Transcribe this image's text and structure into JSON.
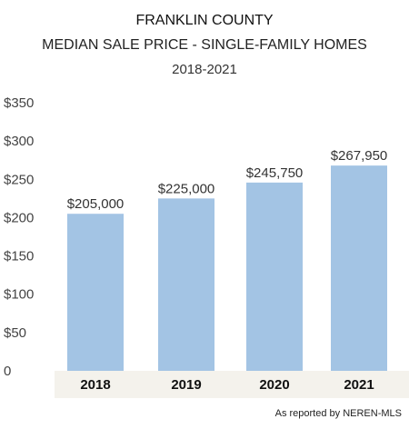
{
  "chart_data": {
    "type": "bar",
    "title": "FRANKLIN COUNTY",
    "subtitle": "MEDIAN SALE PRICE - SINGLE-FAMILY HOMES",
    "period": "2018-2021",
    "categories": [
      "2018",
      "2019",
      "2020",
      "2021"
    ],
    "values": [
      205000,
      225000,
      245750,
      267950
    ],
    "data_labels": [
      "$205,000",
      "$225,000",
      "$245,750",
      "$267,950"
    ],
    "y_ticks": [
      0,
      50000,
      100000,
      150000,
      200000,
      250000,
      300000,
      350000
    ],
    "y_tick_labels": [
      "0",
      "$50",
      "$100",
      "$150",
      "$200",
      "$250",
      "$300",
      "$350"
    ],
    "ylim": [
      0,
      350000
    ],
    "xlabel": "",
    "ylabel": "",
    "grid": false,
    "legend": "none",
    "bar_color": "#a3c4e4",
    "axis_band_color": "#f4f2ec",
    "source": "As reported by NEREN-MLS"
  }
}
